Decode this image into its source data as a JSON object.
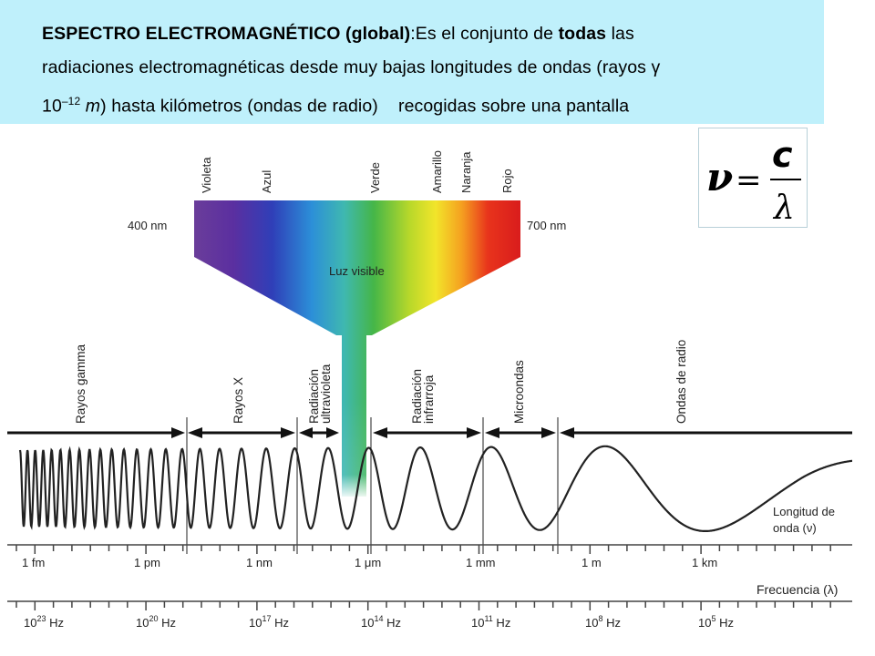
{
  "header": {
    "title_bold": "ESPECTRO ELECTROMAGNÉTICO (global)",
    "intro_a": ":Es el conjunto de ",
    "intro_bold": "todas",
    "intro_b": " las",
    "line2": "radiaciones electromagnéticas desde muy bajas longitudes de ondas (rayos γ",
    "line3_base": "10",
    "line3_exp": "–12",
    "line3_unit": "m",
    "line3_rest": ") hasta kilómetros (ondas de radio)    recogidas sobre una pantalla"
  },
  "formula": {
    "lhs": "ν",
    "eq": "=",
    "numerator": "c",
    "denominator": "λ"
  },
  "visible": {
    "colors": [
      "Violeta",
      "Azul",
      "Verde",
      "Amarillo",
      "Naranja",
      "Rojo"
    ],
    "left_nm": "400 nm",
    "right_nm": "700 nm",
    "label": "Luz visible"
  },
  "bands": [
    "Rayos gamma",
    "Rayos X",
    "Radiación",
    "ultravioleta",
    "Radiación",
    "infrarroja",
    "Microondas",
    "Ondas de radio"
  ],
  "wavelength_label": [
    "Longitud de",
    "onda (ν)"
  ],
  "wavelength_ticks": [
    "1 fm",
    "1 pm",
    "1 nm",
    "1 μm",
    "1 mm",
    "1 m",
    "1 km"
  ],
  "frequency_label": "Frecuencia (λ)",
  "frequency_ticks": [
    {
      "base": "10",
      "exp": "23",
      "unit": " Hz"
    },
    {
      "base": "10",
      "exp": "20",
      "unit": " Hz"
    },
    {
      "base": "10",
      "exp": "17",
      "unit": " Hz"
    },
    {
      "base": "10",
      "exp": "14",
      "unit": " Hz"
    },
    {
      "base": "10",
      "exp": "11",
      "unit": " Hz"
    },
    {
      "base": "10",
      "exp": "8",
      "unit": " Hz"
    },
    {
      "base": "10",
      "exp": "5",
      "unit": " Hz"
    }
  ],
  "colors": {
    "header_bg": "#bff0fb"
  }
}
